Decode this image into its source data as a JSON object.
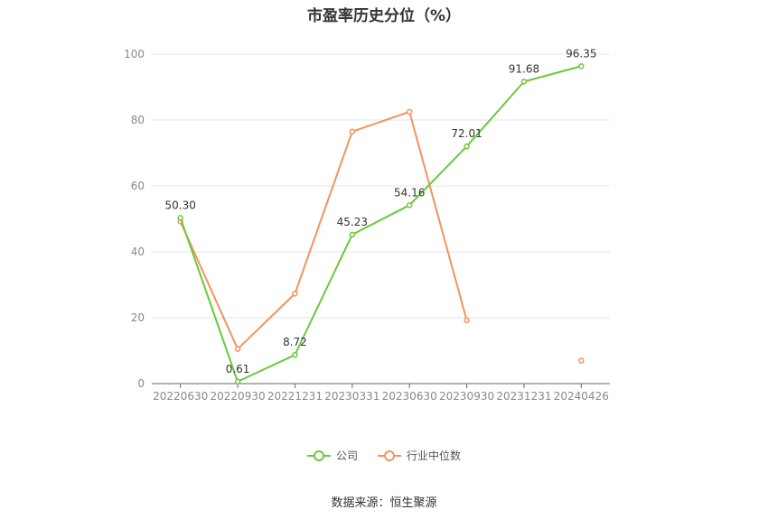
{
  "chart_data": {
    "type": "line",
    "title": "市盈率历史分位（%）",
    "categories": [
      "20220630",
      "20220930",
      "20221231",
      "20230331",
      "20230630",
      "20230930",
      "20231231",
      "20240426"
    ],
    "ylim": [
      0,
      100
    ],
    "yticks": [
      0,
      20,
      40,
      60,
      80,
      100
    ],
    "grid": true,
    "legend_position": "bottom",
    "series": [
      {
        "name": "公司",
        "color": "#6cc83a",
        "values": [
          50.3,
          0.61,
          8.72,
          45.23,
          54.16,
          72.01,
          91.68,
          96.35
        ],
        "labels": [
          "50.30",
          "0.61",
          "8.72",
          "45.23",
          "54.16",
          "72.01",
          "91.68",
          "96.35"
        ]
      },
      {
        "name": "行业中位数",
        "color": "#f4925f",
        "values": [
          49.2,
          10.5,
          27.3,
          76.5,
          82.5,
          19.2,
          null,
          7.0
        ]
      }
    ]
  },
  "source": "数据来源：恒生聚源"
}
